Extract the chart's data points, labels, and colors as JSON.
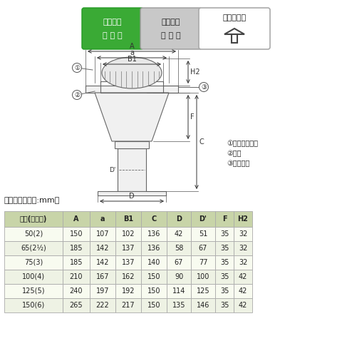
{
  "badge1_color": "#3aaa35",
  "badge2_color": "#c0c0c0",
  "badge3_color": "#ffffff",
  "legend1": "ストレーナー",
  "legend2": "本体",
  "legend3": "丸小ネジ",
  "table_title": "寸法表　＜単位:mm＞",
  "col_headers": [
    "呼称(インチ)",
    "A",
    "a",
    "B1",
    "C",
    "D",
    "D'",
    "F",
    "H2"
  ],
  "rows": [
    [
      "50(2)",
      "150",
      "107",
      "102",
      "136",
      "42",
      "51",
      "35",
      "32"
    ],
    [
      "65(2½)",
      "185",
      "142",
      "137",
      "136",
      "58",
      "67",
      "35",
      "32"
    ],
    [
      "75(3)",
      "185",
      "142",
      "137",
      "140",
      "67",
      "77",
      "35",
      "32"
    ],
    [
      "100(4)",
      "210",
      "167",
      "162",
      "150",
      "90",
      "100",
      "35",
      "42"
    ],
    [
      "125(5)",
      "240",
      "197",
      "192",
      "150",
      "114",
      "125",
      "35",
      "42"
    ],
    [
      "150(6)",
      "265",
      "222",
      "217",
      "150",
      "135",
      "146",
      "35",
      "42"
    ]
  ],
  "header_bg": "#c8d4a8",
  "row_bg_light": "#eef2e4",
  "row_bg_white": "#f8fbf0",
  "border_color": "#aaaaaa",
  "bg_color": "#ffffff"
}
